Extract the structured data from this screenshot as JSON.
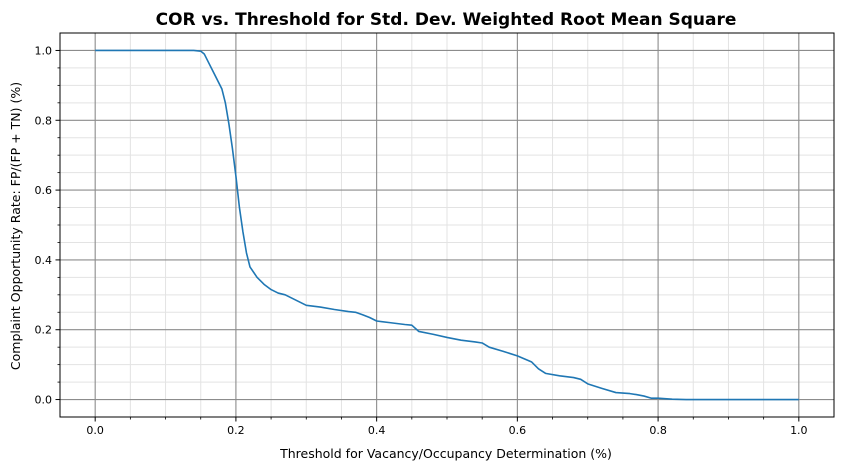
{
  "chart_data": {
    "type": "line",
    "title": "COR vs. Threshold for Std. Dev. Weighted Root Mean Square",
    "xlabel": "Threshold for Vacancy/Occupancy Determination (%)",
    "ylabel": "Complaint Opportunity Rate: FP/(FP + TN) (%)",
    "xlim": [
      -0.05,
      1.05
    ],
    "ylim": [
      -0.05,
      1.05
    ],
    "x_ticks": [
      0.0,
      0.2,
      0.4,
      0.6,
      0.8,
      1.0
    ],
    "x_tick_labels": [
      "0.0",
      "0.2",
      "0.4",
      "0.6",
      "0.8",
      "1.0"
    ],
    "y_ticks": [
      0.0,
      0.2,
      0.4,
      0.6,
      0.8,
      1.0
    ],
    "y_tick_labels": [
      "0.0",
      "0.2",
      "0.4",
      "0.6",
      "0.8",
      "1.0"
    ],
    "grid": "major and minor",
    "legend": "none",
    "line_color": "#1f77b4",
    "series": [
      {
        "x": [
          0.0,
          0.05,
          0.1,
          0.14,
          0.15,
          0.155,
          0.16,
          0.17,
          0.18,
          0.185,
          0.19,
          0.195,
          0.2,
          0.205,
          0.21,
          0.215,
          0.22,
          0.23,
          0.24,
          0.25,
          0.26,
          0.27,
          0.28,
          0.29,
          0.3,
          0.32,
          0.34,
          0.36,
          0.37,
          0.38,
          0.39,
          0.4,
          0.42,
          0.44,
          0.45,
          0.46,
          0.48,
          0.5,
          0.52,
          0.54,
          0.55,
          0.56,
          0.58,
          0.6,
          0.62,
          0.63,
          0.64,
          0.66,
          0.68,
          0.69,
          0.7,
          0.72,
          0.74,
          0.76,
          0.77,
          0.78,
          0.79,
          0.8,
          0.82,
          0.84,
          0.85,
          0.9,
          1.0
        ],
        "y": [
          1.0,
          1.0,
          1.0,
          1.0,
          0.998,
          0.99,
          0.97,
          0.93,
          0.89,
          0.85,
          0.79,
          0.72,
          0.64,
          0.55,
          0.48,
          0.42,
          0.38,
          0.35,
          0.33,
          0.315,
          0.305,
          0.3,
          0.29,
          0.28,
          0.27,
          0.265,
          0.258,
          0.252,
          0.25,
          0.243,
          0.235,
          0.225,
          0.22,
          0.215,
          0.213,
          0.195,
          0.187,
          0.178,
          0.17,
          0.165,
          0.162,
          0.15,
          0.138,
          0.125,
          0.108,
          0.088,
          0.075,
          0.068,
          0.063,
          0.058,
          0.045,
          0.032,
          0.02,
          0.017,
          0.014,
          0.01,
          0.004,
          0.004,
          0.001,
          0.0,
          0.0,
          0.0,
          0.0
        ]
      }
    ]
  }
}
